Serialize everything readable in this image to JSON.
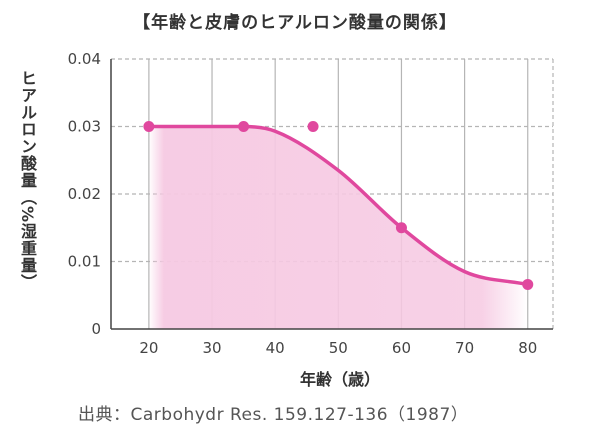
{
  "chart_data": {
    "type": "line",
    "title": "【年齢と皮膚のヒアルロン酸量の関係】",
    "xlabel": "年齢（歳）",
    "ylabel": "ヒアルロン酸量（%湿重量）",
    "x_ticks": [
      "20",
      "30",
      "40",
      "50",
      "60",
      "70",
      "80"
    ],
    "y_ticks": [
      "0",
      "0.01",
      "0.02",
      "0.03",
      "0.04"
    ],
    "xlim": [
      14,
      84
    ],
    "ylim": [
      0,
      0.04
    ],
    "grid": true,
    "points": [
      {
        "x": 20,
        "y": 0.03
      },
      {
        "x": 35,
        "y": 0.03
      },
      {
        "x": 46,
        "y": 0.03
      },
      {
        "x": 60,
        "y": 0.015
      },
      {
        "x": 80,
        "y": 0.0066
      }
    ],
    "curve": [
      {
        "x": 20,
        "y": 0.03
      },
      {
        "x": 35,
        "y": 0.03
      },
      {
        "x": 40,
        "y": 0.0293
      },
      {
        "x": 50,
        "y": 0.0235
      },
      {
        "x": 60,
        "y": 0.015
      },
      {
        "x": 70,
        "y": 0.0085
      },
      {
        "x": 80,
        "y": 0.0066
      }
    ],
    "colors": {
      "line": "#e0489e",
      "fill": "#f6c9e2",
      "grid": "#b5b5b5",
      "axis": "#444444"
    }
  },
  "source": "出典：Carbohydr Res. 159.127-136（1987）"
}
